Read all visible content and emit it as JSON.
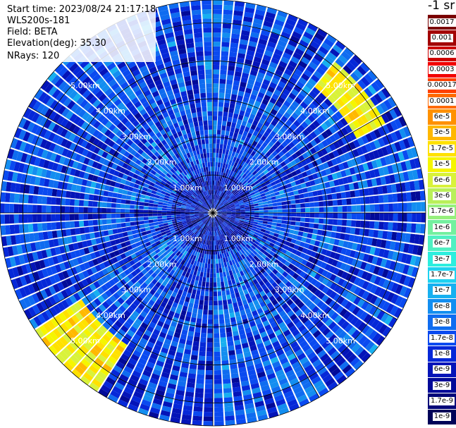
{
  "meta": {
    "start_time": "Start time: 2023/08/24 21:17:18",
    "instrument": "WLS200s-181",
    "field": "Field: BETA",
    "elevation": "Elevation(deg): 35.30",
    "nrays": "NRays: 120"
  },
  "colorbar": {
    "unit_label": "-1 sr",
    "ticks": [
      "0.0017",
      "0.001",
      "0.0006",
      "0.0003",
      "0.00017",
      "0.0001",
      "6e-5",
      "3e-5",
      "1.7e-5",
      "1e-5",
      "6e-6",
      "3e-6",
      "1.7e-6",
      "1e-6",
      "6e-7",
      "3e-7",
      "1.7e-7",
      "1e-7",
      "6e-8",
      "3e-8",
      "1.7e-8",
      "1e-8",
      "6e-9",
      "3e-9",
      "1.7e-9",
      "1e-9"
    ],
    "colors": [
      "#7a0000",
      "#a30000",
      "#cc0000",
      "#f20000",
      "#ff4000",
      "#ff6a00",
      "#ff9100",
      "#ffb800",
      "#ffe100",
      "#f5f500",
      "#d9f23a",
      "#b9f05a",
      "#96f07c",
      "#73f09f",
      "#50f0c2",
      "#2deede",
      "#1fd2f0",
      "#17b0f0",
      "#138ef0",
      "#0f6cf0",
      "#0a4af0",
      "#0628d8",
      "#0414b8",
      "#020a98",
      "#010578",
      "#000258"
    ]
  },
  "chart_data": {
    "type": "heatmap",
    "projection": "polar (PPI scan)",
    "field": "BETA",
    "elevation_deg": 35.3,
    "n_rays": 120,
    "range_rings_km": [
      1.0,
      2.0,
      3.0,
      4.0,
      5.0
    ],
    "ring_labels": [
      "1.00km",
      "2.00km",
      "3.00km",
      "4.00km",
      "5.00km"
    ],
    "max_range_km": 5.6,
    "color_scale": "log",
    "value_range": [
      1e-09,
      0.0017
    ],
    "background_level": "1e-7 to 1e-8",
    "features": [
      {
        "description": "enhanced backscatter band",
        "azimuth_deg": [
          40,
          62
        ],
        "range_km": [
          4.3,
          5.1
        ],
        "level": "1e-5"
      },
      {
        "description": "enhanced backscatter band",
        "azimuth_deg": [
          212,
          238
        ],
        "range_km": [
          4.2,
          5.6
        ],
        "level": "1.7e-5 to 6e-5"
      }
    ]
  }
}
